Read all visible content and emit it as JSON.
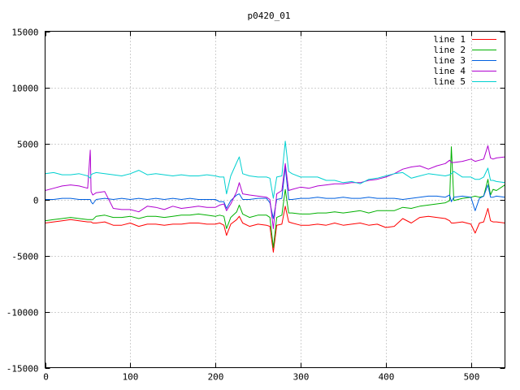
{
  "chart_data": {
    "type": "line",
    "title": "p0420_01",
    "xlabel": "",
    "ylabel": "",
    "xlim": [
      0,
      540
    ],
    "ylim": [
      -15000,
      15000
    ],
    "xticks": [
      0,
      100,
      200,
      300,
      400,
      500
    ],
    "yticks": [
      -15000,
      -10000,
      -5000,
      0,
      5000,
      10000,
      15000
    ],
    "grid": true,
    "legend_position": "top-right",
    "x": [
      0,
      10,
      20,
      30,
      40,
      50,
      53,
      54,
      56,
      60,
      70,
      80,
      90,
      100,
      110,
      120,
      130,
      140,
      150,
      160,
      170,
      180,
      190,
      200,
      205,
      210,
      213,
      218,
      225,
      228,
      232,
      240,
      250,
      260,
      264,
      268,
      272,
      278,
      282,
      286,
      290,
      300,
      310,
      320,
      330,
      340,
      350,
      360,
      370,
      380,
      390,
      400,
      410,
      420,
      430,
      440,
      450,
      460,
      470,
      475,
      477,
      480,
      490,
      500,
      505,
      510,
      515,
      520,
      523,
      526,
      530,
      540
    ],
    "series": [
      {
        "name": "line 1",
        "color": "#ff0000",
        "values": [
          -2100,
          -2000,
          -1900,
          -1800,
          -1900,
          -2000,
          -2000,
          -2000,
          -2100,
          -2100,
          -2000,
          -2300,
          -2300,
          -2100,
          -2400,
          -2200,
          -2200,
          -2300,
          -2200,
          -2200,
          -2100,
          -2100,
          -2200,
          -2200,
          -2100,
          -2300,
          -3200,
          -2200,
          -1800,
          -1500,
          -2100,
          -2400,
          -2200,
          -2300,
          -2400,
          -4700,
          -2300,
          -2200,
          -600,
          -2000,
          -2100,
          -2300,
          -2300,
          -2200,
          -2300,
          -2100,
          -2300,
          -2200,
          -2100,
          -2300,
          -2200,
          -2500,
          -2400,
          -1700,
          -2100,
          -1600,
          -1500,
          -1600,
          -1700,
          -1900,
          -2100,
          -2100,
          -2000,
          -2200,
          -3000,
          -2100,
          -2000,
          -800,
          -1900,
          -2000,
          -2000,
          -2100
        ]
      },
      {
        "name": "line 2",
        "color": "#00b000",
        "values": [
          -1900,
          -1800,
          -1700,
          -1600,
          -1700,
          -1800,
          -1800,
          -1800,
          -1800,
          -1500,
          -1400,
          -1600,
          -1600,
          -1500,
          -1700,
          -1500,
          -1500,
          -1600,
          -1500,
          -1400,
          -1400,
          -1300,
          -1400,
          -1500,
          -1400,
          -1500,
          -2600,
          -1600,
          -1100,
          -500,
          -1300,
          -1600,
          -1400,
          -1400,
          -1600,
          -4300,
          -1600,
          -1400,
          900,
          -1200,
          -1200,
          -1300,
          -1300,
          -1200,
          -1200,
          -1100,
          -1200,
          -1100,
          -1000,
          -1200,
          -1000,
          -1000,
          -1000,
          -700,
          -800,
          -600,
          -500,
          -400,
          -300,
          -100,
          4700,
          -100,
          100,
          200,
          300,
          200,
          300,
          1800,
          400,
          900,
          800,
          1300
        ]
      },
      {
        "name": "line 3",
        "color": "#0060e0",
        "values": [
          0,
          0,
          100,
          100,
          0,
          0,
          0,
          -200,
          -400,
          0,
          100,
          0,
          100,
          0,
          100,
          0,
          100,
          0,
          100,
          0,
          100,
          0,
          0,
          0,
          -200,
          -200,
          -800,
          -100,
          400,
          500,
          0,
          0,
          100,
          100,
          -300,
          -1700,
          0,
          100,
          2900,
          0,
          0,
          100,
          100,
          200,
          100,
          100,
          200,
          100,
          100,
          200,
          100,
          100,
          100,
          0,
          100,
          200,
          300,
          300,
          200,
          400,
          -200,
          200,
          300,
          200,
          -1000,
          100,
          300,
          1300,
          200,
          200,
          300,
          200
        ]
      },
      {
        "name": "line 4",
        "color": "#b000d0",
        "values": [
          800,
          1000,
          1200,
          1300,
          1200,
          1000,
          4400,
          700,
          400,
          600,
          700,
          -800,
          -900,
          -900,
          -1100,
          -600,
          -700,
          -900,
          -600,
          -800,
          -700,
          -600,
          -700,
          -700,
          -500,
          -400,
          -1000,
          -400,
          700,
          1500,
          500,
          400,
          300,
          200,
          0,
          -2600,
          500,
          800,
          3200,
          800,
          900,
          1100,
          1000,
          1200,
          1300,
          1400,
          1400,
          1500,
          1500,
          1700,
          1800,
          2000,
          2300,
          2700,
          2900,
          3000,
          2700,
          3000,
          3200,
          3500,
          3300,
          3300,
          3400,
          3600,
          3400,
          3500,
          3600,
          4800,
          3700,
          3600,
          3700,
          3800
        ]
      },
      {
        "name": "line 5",
        "color": "#00d0d0",
        "values": [
          2300,
          2400,
          2200,
          2200,
          2300,
          2100,
          1900,
          2200,
          2300,
          2400,
          2300,
          2200,
          2100,
          2300,
          2600,
          2200,
          2300,
          2200,
          2100,
          2200,
          2100,
          2100,
          2200,
          2100,
          2000,
          2000,
          500,
          2100,
          3300,
          3800,
          2300,
          2100,
          2000,
          2000,
          1900,
          100,
          2000,
          2100,
          5200,
          2500,
          2300,
          2000,
          2000,
          2000,
          1700,
          1700,
          1500,
          1600,
          1400,
          1800,
          1900,
          2100,
          2300,
          2400,
          1900,
          2100,
          2300,
          2200,
          2100,
          2200,
          2300,
          2500,
          2000,
          2000,
          1800,
          1800,
          2000,
          2800,
          1700,
          1700,
          1600,
          1500
        ]
      }
    ]
  }
}
